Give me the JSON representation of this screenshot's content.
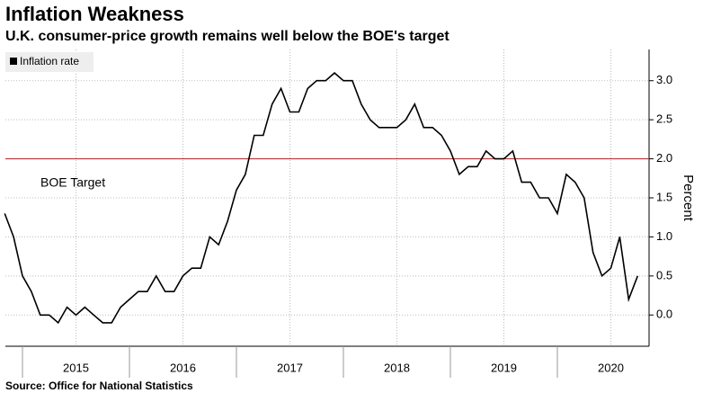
{
  "chart_data": {
    "type": "line",
    "title": "Inflation Weakness",
    "subtitle": "U.K. consumer-price growth remains well below the BOE's target",
    "source": "Source: Office for National Statistics",
    "y_label": "Percent",
    "x": [
      "2014-10",
      "2014-11",
      "2014-12",
      "2015-01",
      "2015-02",
      "2015-03",
      "2015-04",
      "2015-05",
      "2015-06",
      "2015-07",
      "2015-08",
      "2015-09",
      "2015-10",
      "2015-11",
      "2015-12",
      "2016-01",
      "2016-02",
      "2016-03",
      "2016-04",
      "2016-05",
      "2016-06",
      "2016-07",
      "2016-08",
      "2016-09",
      "2016-10",
      "2016-11",
      "2016-12",
      "2017-01",
      "2017-02",
      "2017-03",
      "2017-04",
      "2017-05",
      "2017-06",
      "2017-07",
      "2017-08",
      "2017-09",
      "2017-10",
      "2017-11",
      "2017-12",
      "2018-01",
      "2018-02",
      "2018-03",
      "2018-04",
      "2018-05",
      "2018-06",
      "2018-07",
      "2018-08",
      "2018-09",
      "2018-10",
      "2018-11",
      "2018-12",
      "2019-01",
      "2019-02",
      "2019-03",
      "2019-04",
      "2019-05",
      "2019-06",
      "2019-07",
      "2019-08",
      "2019-09",
      "2019-10",
      "2019-11",
      "2019-12",
      "2020-01",
      "2020-02",
      "2020-03",
      "2020-04",
      "2020-05",
      "2020-06",
      "2020-07",
      "2020-08",
      "2020-09"
    ],
    "series": [
      {
        "name": "Inflation rate",
        "color": "#000000",
        "values": [
          1.3,
          1.0,
          0.5,
          0.3,
          0.0,
          0.0,
          -0.1,
          0.1,
          0.0,
          0.1,
          0.0,
          -0.1,
          -0.1,
          0.1,
          0.2,
          0.3,
          0.3,
          0.5,
          0.3,
          0.3,
          0.5,
          0.6,
          0.6,
          1.0,
          0.9,
          1.2,
          1.6,
          1.8,
          2.3,
          2.3,
          2.7,
          2.9,
          2.6,
          2.6,
          2.9,
          3.0,
          3.0,
          3.1,
          3.0,
          3.0,
          2.7,
          2.5,
          2.4,
          2.4,
          2.4,
          2.5,
          2.7,
          2.4,
          2.4,
          2.3,
          2.1,
          1.8,
          1.9,
          1.9,
          2.1,
          2.0,
          2.0,
          2.1,
          1.7,
          1.7,
          1.5,
          1.5,
          1.3,
          1.8,
          1.7,
          1.5,
          0.8,
          0.5,
          0.6,
          1.0,
          0.2,
          0.5
        ]
      }
    ],
    "reference_line": {
      "value": 2.0,
      "label": "BOE Target",
      "color": "#e0262d"
    },
    "xticks": [
      2015,
      2016,
      2017,
      2018,
      2019,
      2020
    ],
    "ylim": [
      -0.4,
      3.4
    ],
    "yticks": [
      {
        "value": 0,
        "label": "0.0"
      },
      0.5,
      {
        "value": 1,
        "label": "1.0"
      },
      1.5,
      {
        "value": 2,
        "label": "2.0"
      },
      2.5,
      {
        "value": 3,
        "label": "3.0"
      }
    ],
    "grid": true,
    "legend": "top-left"
  }
}
